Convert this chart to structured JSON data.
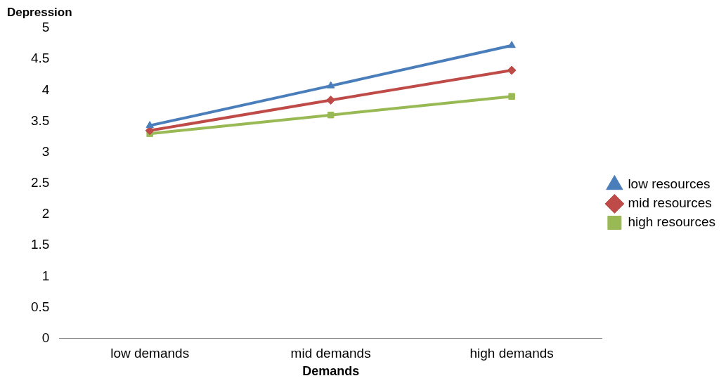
{
  "chart_data": {
    "type": "line",
    "ylabel": "Depression",
    "xlabel": "Demands",
    "categories": [
      "low demands",
      "mid demands",
      "high demands"
    ],
    "series": [
      {
        "name": "low resources",
        "color": "#4a7ebb",
        "marker": "triangle",
        "values": [
          3.43,
          4.07,
          4.72
        ]
      },
      {
        "name": "mid resources",
        "color": "#be4b48",
        "marker": "diamond",
        "values": [
          3.35,
          3.84,
          4.32
        ]
      },
      {
        "name": "high resources",
        "color": "#98b954",
        "marker": "square",
        "values": [
          3.3,
          3.6,
          3.9
        ]
      }
    ],
    "ylim": [
      0,
      5
    ],
    "yticks": [
      0,
      0.5,
      1,
      1.5,
      2,
      2.5,
      3,
      3.5,
      4,
      4.5,
      5
    ],
    "grid": false,
    "legend": "right",
    "line_style": "solid"
  }
}
